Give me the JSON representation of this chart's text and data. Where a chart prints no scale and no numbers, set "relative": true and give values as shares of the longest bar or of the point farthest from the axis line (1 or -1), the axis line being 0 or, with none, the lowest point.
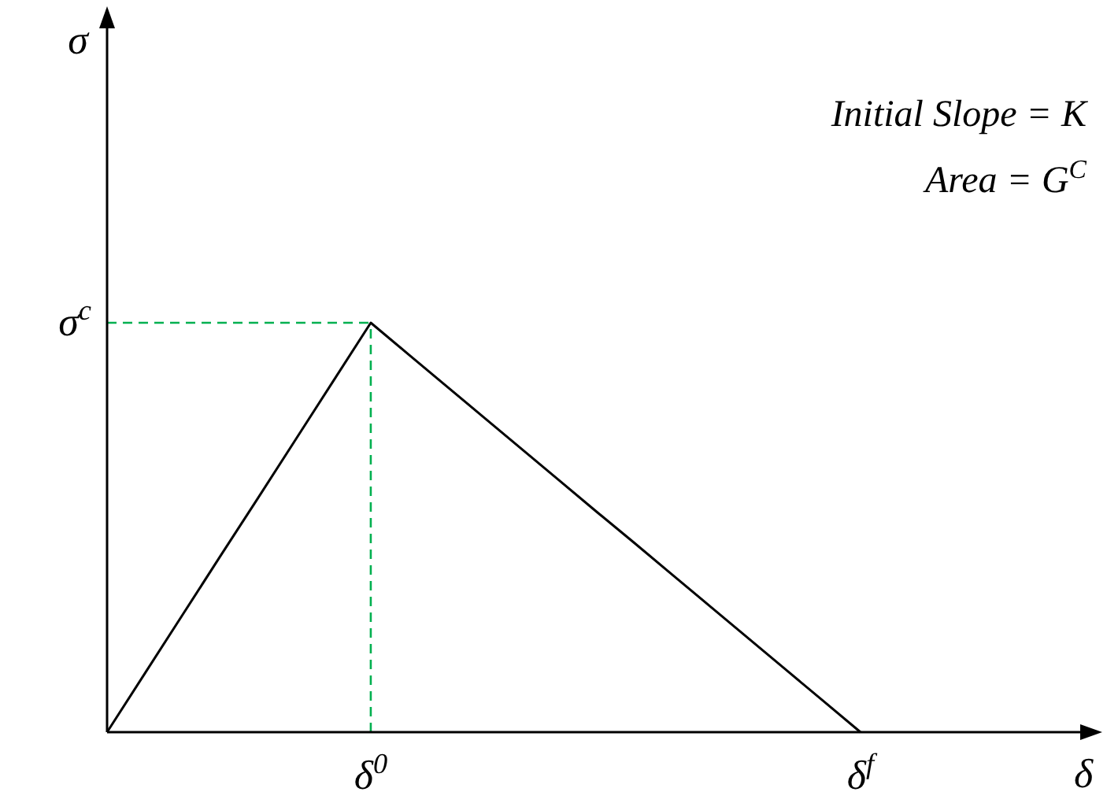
{
  "chart_data": {
    "type": "line",
    "relative": true,
    "xlabel": "δ",
    "categories": [
      null,
      null,
      null,
      null,
      null,
      null,
      null,
      "δ$^{0}$",
      null,
      null,
      null,
      null,
      null,
      null,
      null,
      null,
      null,
      null,
      null,
      null,
      "δ$^{f}$",
      null,
      null,
      null,
      null,
      null,
      null
    ],
    "series": [
      {
        "color": "#000000",
        "values": [
          0,
          0.143,
          0.286,
          0.429,
          0.571,
          0.714,
          0.857,
          1,
          0.923,
          0.846,
          0.769,
          0.692,
          0.615,
          0.538,
          0.462,
          0.385,
          0.308,
          0.231,
          0.154,
          0.077,
          0,
          null,
          null,
          null,
          null,
          null,
          null
        ]
      }
    ],
    "ref_lines": [
      {
        "axis": "y",
        "value": 1,
        "label": "σ$^{c}$",
        "color": "#00b050",
        "line_style": "dashed"
      },
      {
        "axis": "x",
        "value": "δ$^{0}$",
        "color": "#00b050",
        "line_style": "dashed"
      }
    ],
    "annotations": [
      "σ",
      "Initial Slope = K",
      "Area = G$^{C}$"
    ],
    "marker": "none",
    "line_style": "solid",
    "grid": false,
    "legend": false
  }
}
